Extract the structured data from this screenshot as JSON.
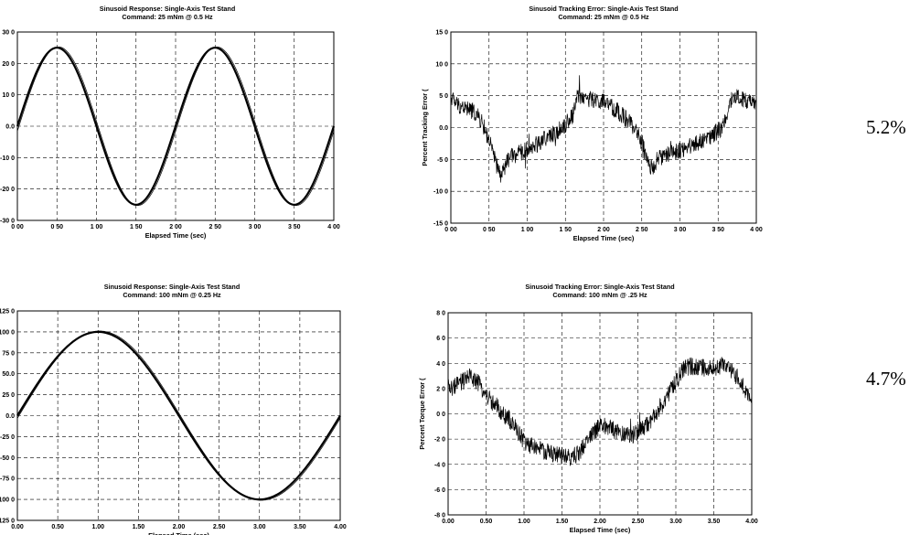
{
  "chart_data": [
    {
      "id": "p1",
      "type": "line",
      "title": "Sinusoid Response: Single-Axis Test Stand",
      "subtitle": "Command: 25 mNm @ 0.5 Hz",
      "xlabel": "Elapsed Time (sec)",
      "ylabel": "Torque (mNm",
      "xlim": [
        0,
        4
      ],
      "ylim": [
        -30,
        30
      ],
      "x_ticks": [
        "0 00",
        "0 50",
        "1 00",
        "1 50",
        "2 00",
        "2 50",
        "3 00",
        "3 50",
        "4 00"
      ],
      "y_ticks": [
        "30 0",
        "20 0",
        "10 0",
        "0.0",
        "-10 0",
        "-20 0",
        "-30 0"
      ],
      "grid": true,
      "series": [
        {
          "kind": "sine",
          "amplitude": 25,
          "frequency_hz": 0.5,
          "x": [
            0.0,
            0.25,
            0.5,
            0.75,
            1.0,
            1.25,
            1.5,
            1.75,
            2.0,
            2.25,
            2.5,
            2.75,
            3.0,
            3.25,
            3.5,
            3.75,
            4.0
          ],
          "y": [
            0.0,
            17.7,
            25.0,
            17.7,
            0.0,
            -17.7,
            -25.0,
            -17.7,
            0.0,
            17.7,
            25.0,
            17.7,
            0.0,
            -17.7,
            -25.0,
            -17.7,
            0.0
          ]
        }
      ]
    },
    {
      "id": "p2",
      "type": "line",
      "title": "Sinusoid Tracking Error: Single-Axis Test Stand",
      "subtitle": "Command: 25 mNm @ 0.5 Hz",
      "xlabel": "Elapsed Time (sec)",
      "ylabel": "Percent Tracking Error (",
      "xlim": [
        0,
        4
      ],
      "ylim": [
        -15,
        15
      ],
      "x_ticks": [
        "0 00",
        "0 50",
        "1 00",
        "1 50",
        "2 00",
        "2 50",
        "3 00",
        "3 50",
        "4 00"
      ],
      "y_ticks": [
        "15 0",
        "10 0",
        "5 0",
        "0.0",
        "-5 0",
        "-10 0",
        "-15 0"
      ],
      "grid": true,
      "annotation": "5.2%",
      "series": [
        {
          "kind": "noisy",
          "x": [
            0.0,
            0.05,
            0.1,
            0.2,
            0.3,
            0.4,
            0.5,
            0.55,
            0.6,
            0.65,
            0.7,
            0.75,
            0.8,
            1.0,
            1.2,
            1.4,
            1.5,
            1.6,
            1.65,
            1.7,
            1.8,
            2.0,
            2.2,
            2.4,
            2.5,
            2.55,
            2.6,
            2.65,
            2.7,
            2.8,
            3.0,
            3.2,
            3.4,
            3.55,
            3.6,
            3.65,
            3.7,
            3.8,
            4.0
          ],
          "y": [
            5.0,
            4.0,
            3.5,
            3.0,
            2.5,
            1.0,
            -2.0,
            -4.0,
            -6.0,
            -7.5,
            -6.5,
            -5.0,
            -4.5,
            -3.5,
            -2.0,
            -0.5,
            0.5,
            2.0,
            5.0,
            5.0,
            4.5,
            4.0,
            2.5,
            0.0,
            -2.0,
            -4.5,
            -6.5,
            -6.0,
            -5.0,
            -4.5,
            -3.5,
            -2.5,
            -1.5,
            0.0,
            1.5,
            4.0,
            5.0,
            4.5,
            3.5
          ]
        }
      ]
    },
    {
      "id": "p3",
      "type": "line",
      "title": "Sinusoid Response: Single-Axis Test Stand",
      "subtitle": "Command: 100 mNm @ 0.25 Hz",
      "xlabel": "Elapsed Time (sec)",
      "ylabel": "Torque (mNm",
      "xlim": [
        0,
        4
      ],
      "ylim": [
        -125,
        125
      ],
      "x_ticks": [
        "0.00",
        "0.50",
        "1.00",
        "1.50",
        "2.00",
        "2.50",
        "3.00",
        "3.50",
        "4.00"
      ],
      "y_ticks": [
        "125 0",
        "100 0",
        "75 0",
        "50.0",
        "25 0",
        "0.0",
        "-25 0",
        "-50 0",
        "-75 0",
        "-100 0",
        "-125 0"
      ],
      "grid": true,
      "series": [
        {
          "kind": "sine",
          "amplitude": 100,
          "frequency_hz": 0.25,
          "x": [
            0.0,
            0.25,
            0.5,
            0.75,
            1.0,
            1.25,
            1.5,
            1.75,
            2.0,
            2.25,
            2.5,
            2.75,
            3.0,
            3.25,
            3.5,
            3.75,
            4.0
          ],
          "y": [
            0.0,
            38.3,
            70.7,
            92.4,
            100.0,
            92.4,
            70.7,
            38.3,
            0.0,
            -38.3,
            -70.7,
            -92.4,
            -100.0,
            -92.4,
            -70.7,
            -38.3,
            0.0
          ]
        }
      ]
    },
    {
      "id": "p4",
      "type": "line",
      "title": "Sinusoid Tracking Error: Single-Axis Test Stand",
      "subtitle": "Command: 100 mNm @ .25 Hz",
      "xlabel": "Elapsed Time (sec)",
      "ylabel": "Percent Torque Error (",
      "xlim": [
        0,
        4
      ],
      "ylim": [
        -8,
        8
      ],
      "x_ticks": [
        "0.00",
        "0.50",
        "1.00",
        "1.50",
        "2.00",
        "2.50",
        "3.00",
        "3.50",
        "4.00"
      ],
      "y_ticks": [
        "8 0",
        "6 0",
        "4 0",
        "2 0",
        "0 0",
        "-2 0",
        "-4 0",
        "-6 0",
        "-8 0"
      ],
      "grid": true,
      "annotation": "4.7%",
      "series": [
        {
          "kind": "noisy",
          "x": [
            0.0,
            0.1,
            0.2,
            0.3,
            0.4,
            0.5,
            0.6,
            0.7,
            0.8,
            0.9,
            1.0,
            1.1,
            1.2,
            1.3,
            1.4,
            1.5,
            1.6,
            1.7,
            1.8,
            1.9,
            2.0,
            2.1,
            2.2,
            2.3,
            2.4,
            2.5,
            2.6,
            2.7,
            2.8,
            2.9,
            3.0,
            3.1,
            3.2,
            3.4,
            3.6,
            3.7,
            3.8,
            3.9,
            4.0
          ],
          "y": [
            2.0,
            2.2,
            2.6,
            3.0,
            2.4,
            1.5,
            0.8,
            0.2,
            -0.4,
            -1.2,
            -2.2,
            -2.5,
            -2.8,
            -3.0,
            -3.2,
            -3.3,
            -3.5,
            -3.2,
            -2.5,
            -1.5,
            -1.0,
            -1.0,
            -1.3,
            -1.6,
            -1.7,
            -1.5,
            -1.0,
            -0.3,
            0.6,
            1.5,
            2.5,
            3.5,
            3.8,
            3.6,
            3.8,
            3.5,
            3.0,
            2.0,
            1.0
          ]
        }
      ]
    }
  ]
}
